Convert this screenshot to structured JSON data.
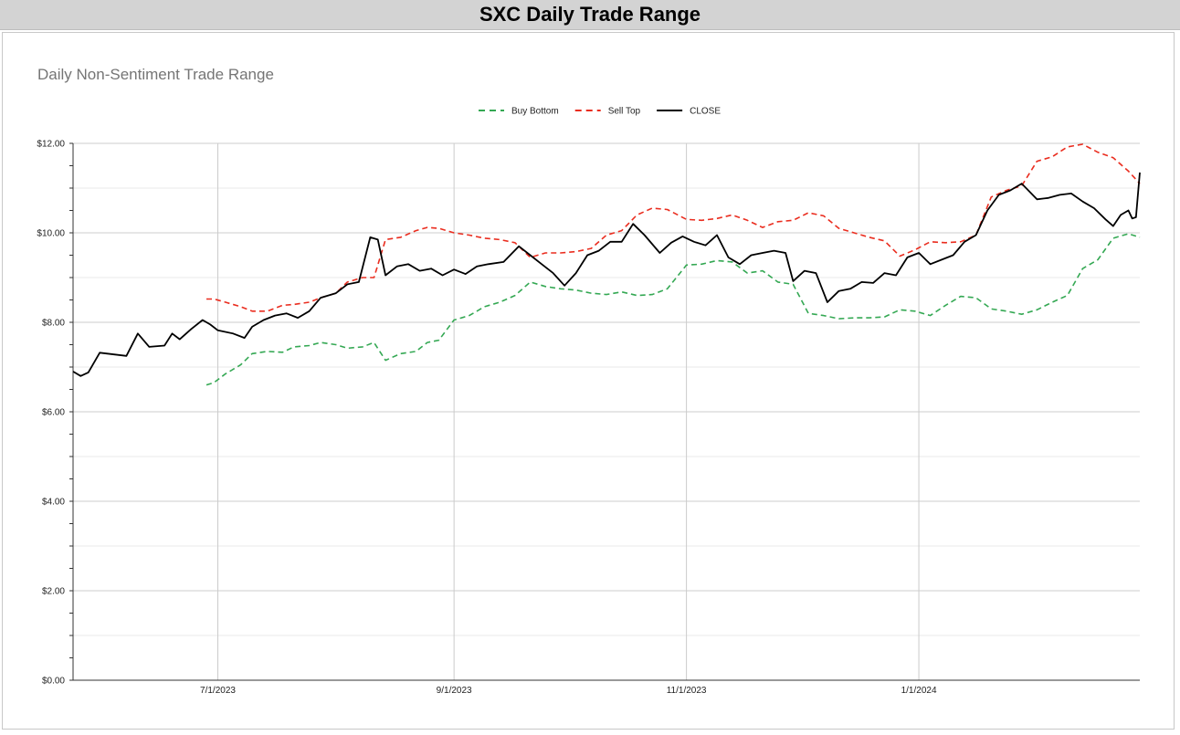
{
  "header": {
    "title": "SXC Daily Trade Range"
  },
  "chart_data": {
    "type": "line",
    "title": "Daily Non-Sentiment Trade Range",
    "xlabel": "",
    "ylabel": "",
    "ylim": [
      0,
      12
    ],
    "xlim": [
      "2023-05-24",
      "2024-02-28"
    ],
    "y_ticks": [
      "$0.00",
      "$2.00",
      "$4.00",
      "$6.00",
      "$8.00",
      "$10.00",
      "$12.00"
    ],
    "y_tick_values": [
      0,
      2,
      4,
      6,
      8,
      10,
      12
    ],
    "x_ticks": [
      "7/1/2023",
      "9/1/2023",
      "11/1/2023",
      "1/1/2024"
    ],
    "x_tick_dates": [
      "2023-07-01",
      "2023-09-01",
      "2023-11-01",
      "2024-01-01"
    ],
    "grid": true,
    "legend_position": "top-center",
    "series": [
      {
        "name": "Buy Bottom",
        "color": "#34a853",
        "dash": true,
        "points": [
          [
            "2023-06-28",
            6.6
          ],
          [
            "2023-06-30",
            6.65
          ],
          [
            "2023-07-03",
            6.85
          ],
          [
            "2023-07-07",
            7.05
          ],
          [
            "2023-07-10",
            7.3
          ],
          [
            "2023-07-14",
            7.35
          ],
          [
            "2023-07-18",
            7.33
          ],
          [
            "2023-07-21",
            7.45
          ],
          [
            "2023-07-25",
            7.48
          ],
          [
            "2023-07-28",
            7.55
          ],
          [
            "2023-08-01",
            7.5
          ],
          [
            "2023-08-04",
            7.42
          ],
          [
            "2023-08-08",
            7.45
          ],
          [
            "2023-08-11",
            7.55
          ],
          [
            "2023-08-14",
            7.15
          ],
          [
            "2023-08-18",
            7.3
          ],
          [
            "2023-08-22",
            7.35
          ],
          [
            "2023-08-25",
            7.55
          ],
          [
            "2023-08-28",
            7.6
          ],
          [
            "2023-09-01",
            8.05
          ],
          [
            "2023-09-05",
            8.15
          ],
          [
            "2023-09-09",
            8.35
          ],
          [
            "2023-09-13",
            8.45
          ],
          [
            "2023-09-17",
            8.6
          ],
          [
            "2023-09-21",
            8.9
          ],
          [
            "2023-09-25",
            8.8
          ],
          [
            "2023-09-29",
            8.75
          ],
          [
            "2023-10-03",
            8.72
          ],
          [
            "2023-10-07",
            8.65
          ],
          [
            "2023-10-11",
            8.62
          ],
          [
            "2023-10-15",
            8.68
          ],
          [
            "2023-10-19",
            8.6
          ],
          [
            "2023-10-23",
            8.62
          ],
          [
            "2023-10-27",
            8.75
          ],
          [
            "2023-11-01",
            9.28
          ],
          [
            "2023-11-05",
            9.3
          ],
          [
            "2023-11-09",
            9.38
          ],
          [
            "2023-11-13",
            9.35
          ],
          [
            "2023-11-17",
            9.1
          ],
          [
            "2023-11-21",
            9.15
          ],
          [
            "2023-11-25",
            8.9
          ],
          [
            "2023-11-29",
            8.85
          ],
          [
            "2023-12-03",
            8.2
          ],
          [
            "2023-12-07",
            8.15
          ],
          [
            "2023-12-11",
            8.08
          ],
          [
            "2023-12-15",
            8.1
          ],
          [
            "2023-12-19",
            8.1
          ],
          [
            "2023-12-23",
            8.12
          ],
          [
            "2023-12-27",
            8.28
          ],
          [
            "2023-12-31",
            8.25
          ],
          [
            "2024-01-04",
            8.15
          ],
          [
            "2024-01-08",
            8.38
          ],
          [
            "2024-01-12",
            8.58
          ],
          [
            "2024-01-16",
            8.55
          ],
          [
            "2024-01-20",
            8.3
          ],
          [
            "2024-01-24",
            8.25
          ],
          [
            "2024-01-28",
            8.18
          ],
          [
            "2024-02-01",
            8.28
          ],
          [
            "2024-02-05",
            8.45
          ],
          [
            "2024-02-09",
            8.6
          ],
          [
            "2024-02-13",
            9.2
          ],
          [
            "2024-02-17",
            9.4
          ],
          [
            "2024-02-21",
            9.88
          ],
          [
            "2024-02-25",
            9.98
          ],
          [
            "2024-02-28",
            9.9
          ]
        ]
      },
      {
        "name": "Sell Top",
        "color": "#ea2d1f",
        "dash": true,
        "points": [
          [
            "2023-06-28",
            8.52
          ],
          [
            "2023-06-30",
            8.52
          ],
          [
            "2023-07-03",
            8.45
          ],
          [
            "2023-07-07",
            8.35
          ],
          [
            "2023-07-10",
            8.25
          ],
          [
            "2023-07-14",
            8.25
          ],
          [
            "2023-07-18",
            8.38
          ],
          [
            "2023-07-21",
            8.4
          ],
          [
            "2023-07-25",
            8.45
          ],
          [
            "2023-07-28",
            8.55
          ],
          [
            "2023-08-01",
            8.65
          ],
          [
            "2023-08-04",
            8.9
          ],
          [
            "2023-08-08",
            9.0
          ],
          [
            "2023-08-11",
            9.0
          ],
          [
            "2023-08-14",
            9.85
          ],
          [
            "2023-08-18",
            9.9
          ],
          [
            "2023-08-22",
            10.05
          ],
          [
            "2023-08-25",
            10.12
          ],
          [
            "2023-08-28",
            10.1
          ],
          [
            "2023-09-01",
            10.0
          ],
          [
            "2023-09-05",
            9.95
          ],
          [
            "2023-09-09",
            9.88
          ],
          [
            "2023-09-13",
            9.85
          ],
          [
            "2023-09-17",
            9.78
          ],
          [
            "2023-09-21",
            9.45
          ],
          [
            "2023-09-25",
            9.55
          ],
          [
            "2023-09-29",
            9.55
          ],
          [
            "2023-10-03",
            9.58
          ],
          [
            "2023-10-07",
            9.65
          ],
          [
            "2023-10-11",
            9.95
          ],
          [
            "2023-10-15",
            10.05
          ],
          [
            "2023-10-19",
            10.4
          ],
          [
            "2023-10-23",
            10.55
          ],
          [
            "2023-10-27",
            10.52
          ],
          [
            "2023-11-01",
            10.3
          ],
          [
            "2023-11-05",
            10.28
          ],
          [
            "2023-11-09",
            10.32
          ],
          [
            "2023-11-13",
            10.4
          ],
          [
            "2023-11-17",
            10.28
          ],
          [
            "2023-11-21",
            10.12
          ],
          [
            "2023-11-25",
            10.25
          ],
          [
            "2023-11-29",
            10.28
          ],
          [
            "2023-12-03",
            10.45
          ],
          [
            "2023-12-07",
            10.38
          ],
          [
            "2023-12-11",
            10.1
          ],
          [
            "2023-12-15",
            10.0
          ],
          [
            "2023-12-19",
            9.9
          ],
          [
            "2023-12-23",
            9.82
          ],
          [
            "2023-12-27",
            9.48
          ],
          [
            "2023-12-31",
            9.62
          ],
          [
            "2024-01-04",
            9.8
          ],
          [
            "2024-01-08",
            9.78
          ],
          [
            "2024-01-12",
            9.8
          ],
          [
            "2024-01-16",
            9.95
          ],
          [
            "2024-01-20",
            10.8
          ],
          [
            "2024-01-24",
            10.95
          ],
          [
            "2024-01-28",
            11.05
          ],
          [
            "2024-02-01",
            11.6
          ],
          [
            "2024-02-05",
            11.7
          ],
          [
            "2024-02-09",
            11.92
          ],
          [
            "2024-02-13",
            11.98
          ],
          [
            "2024-02-17",
            11.8
          ],
          [
            "2024-02-21",
            11.68
          ],
          [
            "2024-02-25",
            11.38
          ],
          [
            "2024-02-28",
            11.1
          ]
        ]
      },
      {
        "name": "CLOSE",
        "color": "#000000",
        "dash": false,
        "points": [
          [
            "2023-05-24",
            6.9
          ],
          [
            "2023-05-26",
            6.8
          ],
          [
            "2023-05-28",
            6.88
          ],
          [
            "2023-05-31",
            7.32
          ],
          [
            "2023-06-04",
            7.28
          ],
          [
            "2023-06-07",
            7.25
          ],
          [
            "2023-06-10",
            7.75
          ],
          [
            "2023-06-13",
            7.45
          ],
          [
            "2023-06-17",
            7.48
          ],
          [
            "2023-06-19",
            7.75
          ],
          [
            "2023-06-21",
            7.62
          ],
          [
            "2023-06-24",
            7.85
          ],
          [
            "2023-06-27",
            8.05
          ],
          [
            "2023-06-29",
            7.95
          ],
          [
            "2023-07-01",
            7.82
          ],
          [
            "2023-07-05",
            7.75
          ],
          [
            "2023-07-08",
            7.65
          ],
          [
            "2023-07-10",
            7.9
          ],
          [
            "2023-07-13",
            8.05
          ],
          [
            "2023-07-16",
            8.15
          ],
          [
            "2023-07-19",
            8.2
          ],
          [
            "2023-07-22",
            8.1
          ],
          [
            "2023-07-25",
            8.25
          ],
          [
            "2023-07-28",
            8.55
          ],
          [
            "2023-08-01",
            8.65
          ],
          [
            "2023-08-04",
            8.85
          ],
          [
            "2023-08-07",
            8.9
          ],
          [
            "2023-08-10",
            9.9
          ],
          [
            "2023-08-12",
            9.85
          ],
          [
            "2023-08-14",
            9.05
          ],
          [
            "2023-08-17",
            9.25
          ],
          [
            "2023-08-20",
            9.3
          ],
          [
            "2023-08-23",
            9.15
          ],
          [
            "2023-08-26",
            9.2
          ],
          [
            "2023-08-29",
            9.05
          ],
          [
            "2023-09-01",
            9.18
          ],
          [
            "2023-09-04",
            9.08
          ],
          [
            "2023-09-07",
            9.25
          ],
          [
            "2023-09-10",
            9.3
          ],
          [
            "2023-09-14",
            9.35
          ],
          [
            "2023-09-18",
            9.7
          ],
          [
            "2023-09-21",
            9.5
          ],
          [
            "2023-09-24",
            9.3
          ],
          [
            "2023-09-27",
            9.1
          ],
          [
            "2023-09-30",
            8.82
          ],
          [
            "2023-10-03",
            9.1
          ],
          [
            "2023-10-06",
            9.5
          ],
          [
            "2023-10-09",
            9.6
          ],
          [
            "2023-10-12",
            9.8
          ],
          [
            "2023-10-15",
            9.8
          ],
          [
            "2023-10-18",
            10.2
          ],
          [
            "2023-10-21",
            9.95
          ],
          [
            "2023-10-25",
            9.55
          ],
          [
            "2023-10-28",
            9.78
          ],
          [
            "2023-10-31",
            9.92
          ],
          [
            "2023-11-03",
            9.8
          ],
          [
            "2023-11-06",
            9.72
          ],
          [
            "2023-11-09",
            9.95
          ],
          [
            "2023-11-12",
            9.45
          ],
          [
            "2023-11-15",
            9.3
          ],
          [
            "2023-11-18",
            9.5
          ],
          [
            "2023-11-21",
            9.55
          ],
          [
            "2023-11-24",
            9.6
          ],
          [
            "2023-11-27",
            9.55
          ],
          [
            "2023-11-29",
            8.92
          ],
          [
            "2023-12-02",
            9.15
          ],
          [
            "2023-12-05",
            9.1
          ],
          [
            "2023-12-08",
            8.45
          ],
          [
            "2023-12-11",
            8.7
          ],
          [
            "2023-12-14",
            8.75
          ],
          [
            "2023-12-17",
            8.9
          ],
          [
            "2023-12-20",
            8.88
          ],
          [
            "2023-12-23",
            9.1
          ],
          [
            "2023-12-26",
            9.05
          ],
          [
            "2023-12-29",
            9.45
          ],
          [
            "2024-01-01",
            9.55
          ],
          [
            "2024-01-04",
            9.3
          ],
          [
            "2024-01-07",
            9.4
          ],
          [
            "2024-01-10",
            9.5
          ],
          [
            "2024-01-13",
            9.8
          ],
          [
            "2024-01-16",
            9.95
          ],
          [
            "2024-01-19",
            10.5
          ],
          [
            "2024-01-22",
            10.85
          ],
          [
            "2024-01-25",
            10.95
          ],
          [
            "2024-01-28",
            11.1
          ],
          [
            "2024-02-01",
            10.75
          ],
          [
            "2024-02-04",
            10.78
          ],
          [
            "2024-02-07",
            10.85
          ],
          [
            "2024-02-10",
            10.88
          ],
          [
            "2024-02-13",
            10.7
          ],
          [
            "2024-02-16",
            10.55
          ],
          [
            "2024-02-19",
            10.3
          ],
          [
            "2024-02-21",
            10.15
          ],
          [
            "2024-02-23",
            10.4
          ],
          [
            "2024-02-25",
            10.5
          ],
          [
            "2024-02-26",
            10.32
          ],
          [
            "2024-02-27",
            10.35
          ],
          [
            "2024-02-28",
            11.35
          ]
        ]
      }
    ]
  }
}
